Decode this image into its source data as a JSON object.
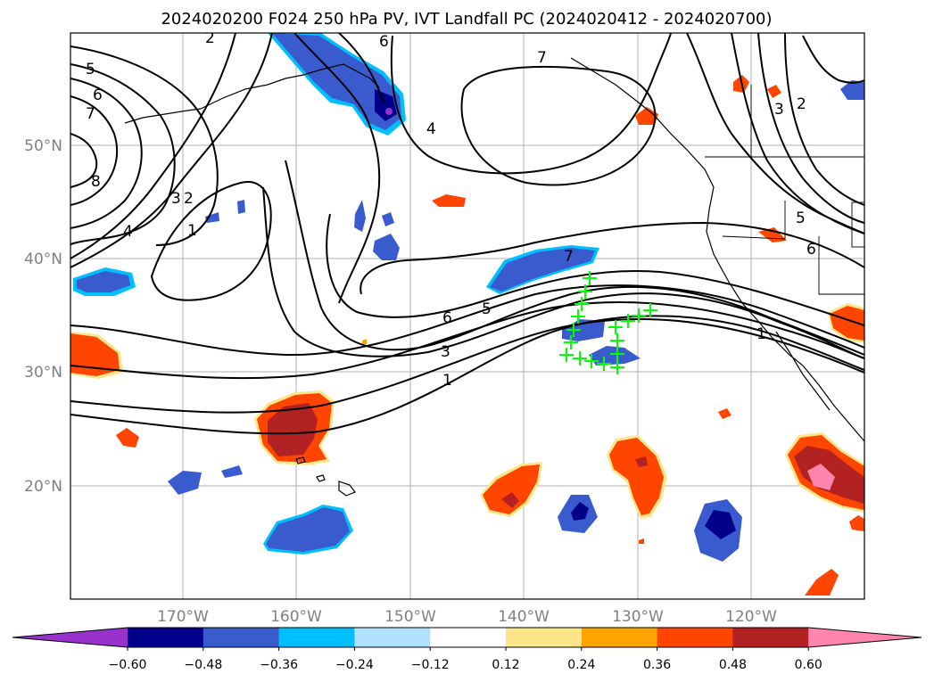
{
  "title": "2024020200 F024 250 hPa PV, IVT Landfall PC (2024020412 - 2024020700)",
  "lat_labels": [
    "50°N",
    "40°N",
    "30°N",
    "20°N"
  ],
  "lon_labels": [
    "170°W",
    "160°W",
    "150°W",
    "140°W",
    "130°W",
    "120°W"
  ],
  "colorbar": {
    "colors": [
      "#9932cc",
      "#00008b",
      "#3a5bcd",
      "#00bfff",
      "#b0e2ff",
      "#ffffff",
      "#fde68a",
      "#ffa500",
      "#ff4500",
      "#b22222",
      "#ff85ad"
    ],
    "tick_labels": [
      "-0.60",
      "-0.48",
      "-0.36",
      "-0.24",
      "-0.12",
      "0.12",
      "0.24",
      "0.36",
      "0.48",
      "0.60"
    ]
  },
  "contour_labels": [
    "5",
    "6",
    "7",
    "8",
    "4",
    "3",
    "2",
    "1",
    "4",
    "7",
    "6",
    "5",
    "3",
    "1",
    "7",
    "3",
    "2",
    "5",
    "6",
    "2",
    "6",
    "1"
  ],
  "colors": {
    "contour": "#000000",
    "coast": "#000000",
    "grid": "#b0b0b0",
    "markers": "#00ff00"
  }
}
